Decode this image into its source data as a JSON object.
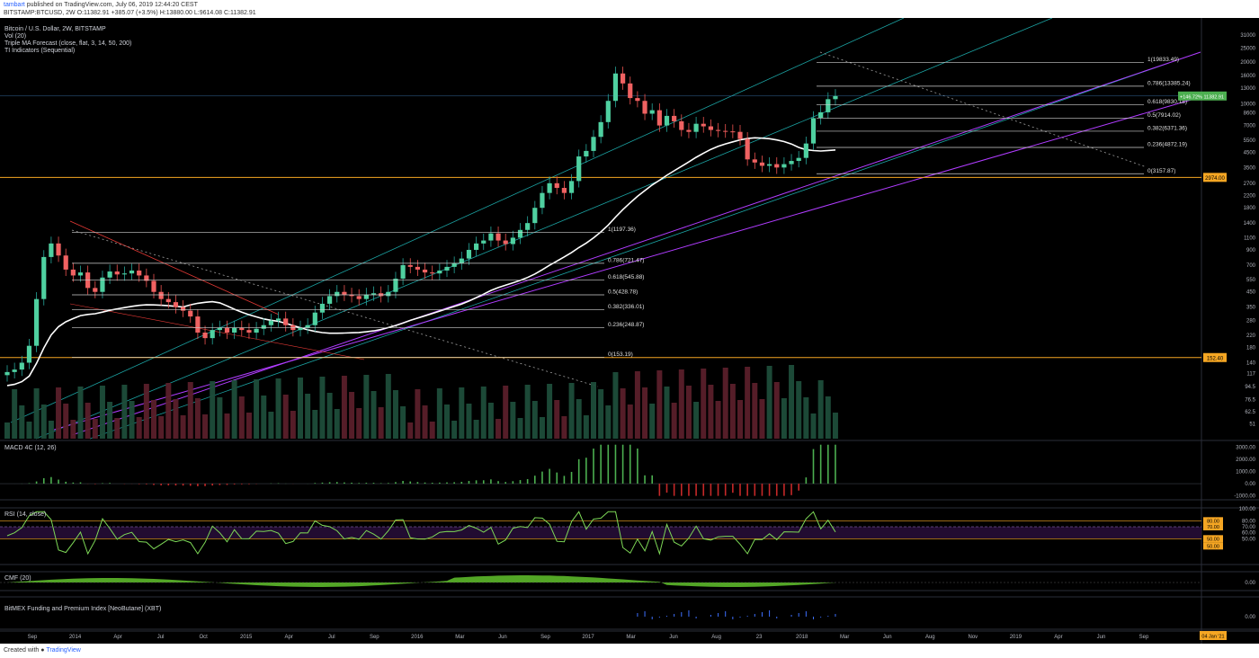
{
  "header": {
    "author": "tambart",
    "published_text": "published on TradingView.com, July 06, 2019 12:44:20 CEST",
    "symbol": "BITSTAMP:BTCUSD, 2W",
    "o_label": "O:",
    "o_value": "11382.91",
    "change": "+385.07 (+3.5%)",
    "h_label": "H:",
    "h_value": "13880.00",
    "l_label": "L:",
    "l_value": "9614.08",
    "c_label": "C:",
    "c_value": "11382.91"
  },
  "legend": {
    "title": "Bitcoin / U.S. Dollar, 2W, BITSTAMP",
    "vol": "Vol (20)",
    "tma": "Triple MA Forecast (close, flat, 3, 14, 50, 200)",
    "td": "TI Indicators (Sequential)"
  },
  "footer": {
    "created": "Created with",
    "brand": "TradingView"
  },
  "theme": {
    "up": "#26a69a",
    "down": "#ef5350",
    "bg": "#000000",
    "fib": "#cfcfcf",
    "purple": "#b03cff",
    "cyan": "#1fb5b5",
    "orange": "#f5a623",
    "green_line": "#4caf50"
  },
  "chart_data": [
    {
      "type": "candlestick",
      "title": "Bitcoin / U.S. Dollar, 2W, BITSTAMP",
      "y_scale": "log",
      "ylim": [
        40,
        40000
      ],
      "y_ticks": [
        31000,
        25000,
        20000,
        16000,
        13000,
        10000,
        8600,
        7000,
        5500,
        4500,
        3500,
        2700,
        2200,
        1800,
        1400,
        1100,
        900,
        700,
        550,
        450,
        350,
        280,
        220,
        180,
        140,
        117,
        94.5,
        76.5,
        62.5,
        51
      ],
      "x_tick_labels": [
        "Sep",
        "2014",
        "Apr",
        "Jul",
        "Oct",
        "2015",
        "Apr",
        "Jul",
        "Sep",
        "2016",
        "Mar",
        "Jun",
        "Sep",
        "2017",
        "Mar",
        "Jun",
        "Aug",
        "23",
        "2018",
        "Mar",
        "Jun",
        "Aug",
        "Nov",
        "2019",
        "Apr",
        "Jun",
        "Sep"
      ],
      "current_price": "11382.91",
      "current_change": "+146.72%",
      "price_markers": [
        {
          "label": "2974.00",
          "value": 2974
        },
        {
          "label": "152.40",
          "value": 152.4
        }
      ],
      "fib_recent": [
        {
          "label": "1(19833.49)",
          "value": 19833.49
        },
        {
          "label": "0.786(13385.24)",
          "value": 13385.24
        },
        {
          "label": "0.618(9830.18)",
          "value": 9830.18
        },
        {
          "label": "0.5(7914.02)",
          "value": 7914.02
        },
        {
          "label": "0.382(6371.36)",
          "value": 6371.36
        },
        {
          "label": "0.236(4872.19)",
          "value": 4872.19
        },
        {
          "label": "0(3157.87)",
          "value": 3157.87
        }
      ],
      "fib_old": [
        {
          "label": "1(1197.36)",
          "value": 1197.36
        },
        {
          "label": "0.786(721.47)",
          "value": 721.47
        },
        {
          "label": "0.618(545.88)",
          "value": 545.88
        },
        {
          "label": "0.5(428.78)",
          "value": 428.78
        },
        {
          "label": "0.382(336.01)",
          "value": 336.01
        },
        {
          "label": "0.236(248.87)",
          "value": 248.87
        },
        {
          "label": "0(153.19)",
          "value": 153.19
        }
      ],
      "closes": [
        120,
        125,
        140,
        185,
        400,
        800,
        1000,
        820,
        650,
        590,
        620,
        480,
        450,
        570,
        630,
        600,
        610,
        640,
        590,
        540,
        450,
        400,
        380,
        350,
        330,
        300,
        230,
        210,
        240,
        250,
        230,
        250,
        240,
        230,
        245,
        260,
        280,
        290,
        260,
        240,
        250,
        260,
        320,
        370,
        420,
        450,
        430,
        420,
        400,
        430,
        440,
        420,
        450,
        560,
        700,
        680,
        650,
        620,
        610,
        640,
        680,
        720,
        780,
        900,
        1000,
        1050,
        1180,
        1050,
        990,
        1100,
        1250,
        1400,
        1800,
        2300,
        2700,
        2500,
        2300,
        2800,
        4200,
        4600,
        5800,
        7400,
        10500,
        16500,
        14000,
        11000,
        10500,
        8500,
        9000,
        7000,
        8200,
        7500,
        6500,
        6300,
        7200,
        6900,
        6500,
        6400,
        6350,
        6300,
        5600,
        4000,
        3800,
        3600,
        3700,
        3500,
        3700,
        3900,
        4100,
        5200,
        7900,
        8700,
        10800,
        11382.91
      ]
    },
    {
      "type": "bar",
      "title": "Vol (20)",
      "y_axis": "none"
    },
    {
      "type": "bar",
      "title": "MACD 4C (12, 26)",
      "y_ticks": [
        3000,
        2000,
        1000,
        0,
        -1000
      ],
      "y_tick_labels": [
        "3000.00",
        "2000.00",
        "1000.00",
        "0.00",
        "-1000.00"
      ],
      "ylim": [
        -1100,
        3400
      ]
    },
    {
      "type": "line",
      "title": "RSI (14, close)",
      "ylim": [
        10,
        100
      ],
      "y_ticks": [
        100,
        80,
        70,
        60,
        50
      ],
      "y_tick_labels": [
        "100.00",
        "80.00",
        "70.00",
        "60.00",
        "50.00"
      ],
      "badge_labels": [
        "80.00",
        "70.00",
        "50.00",
        "50.00"
      ]
    },
    {
      "type": "area",
      "title": "CMF (20)",
      "y_ticks": [
        0
      ],
      "y_tick_labels": [
        "0.00"
      ]
    },
    {
      "type": "bar",
      "title": "BitMEX Funding and Premium Index [NeoButane] (XBT)",
      "y_ticks": [
        0
      ],
      "y_tick_labels": [
        "0.00"
      ],
      "date_badge": "04 Jan '21"
    }
  ]
}
